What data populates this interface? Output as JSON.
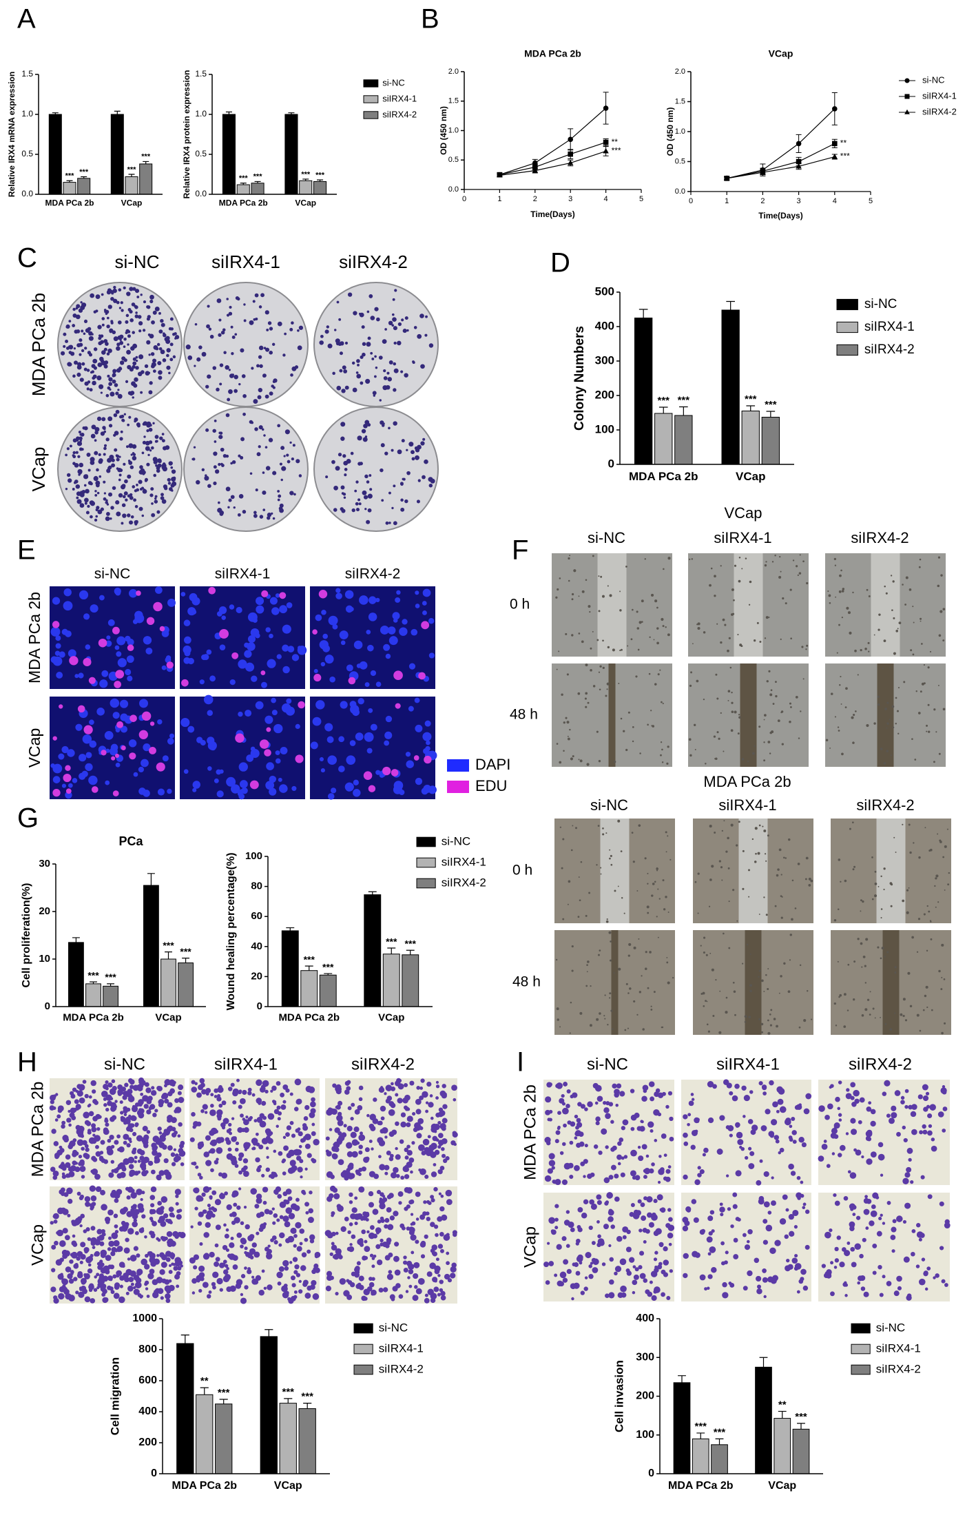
{
  "panel_labels": [
    "A",
    "B",
    "C",
    "D",
    "E",
    "F",
    "G",
    "H",
    "I"
  ],
  "chart_data": [
    {
      "type": "bar",
      "y_label": "Relative IRX4 mRNA expression",
      "categories": [
        "MDA PCa 2b",
        "VCap"
      ],
      "series": [
        {
          "color": "#000000",
          "values": [
            1.0,
            1.0
          ],
          "errors": [
            0.02,
            0.04
          ]
        },
        {
          "color": "#b3b3b3",
          "values": [
            0.15,
            0.22
          ],
          "errors": [
            0.02,
            0.03
          ],
          "significance": [
            "***",
            "***"
          ]
        },
        {
          "color": "#7f7f7f",
          "values": [
            0.2,
            0.38
          ],
          "errors": [
            0.02,
            0.03
          ],
          "significance": [
            "***",
            "***"
          ]
        }
      ],
      "ylim": [
        0,
        1.5
      ],
      "yticks": [
        {
          "value": 0,
          "label": "0.0"
        },
        0.5,
        {
          "value": 1,
          "label": "1.0"
        },
        1.5
      ]
    },
    {
      "type": "bar",
      "y_label": "Relative IRX4 protein expression",
      "categories": [
        "MDA PCa 2b",
        "VCap"
      ],
      "series": [
        {
          "name": "si-NC",
          "color": "#000000",
          "values": [
            1.0,
            1.0
          ],
          "errors": [
            0.03,
            0.02
          ]
        },
        {
          "name": "siIRX4-1",
          "color": "#b3b3b3",
          "values": [
            0.12,
            0.17
          ],
          "errors": [
            0.02,
            0.02
          ],
          "significance": [
            "***",
            "***"
          ]
        },
        {
          "name": "siIRX4-2",
          "color": "#7f7f7f",
          "values": [
            0.14,
            0.16
          ],
          "errors": [
            0.02,
            0.02
          ],
          "significance": [
            "***",
            "***"
          ]
        }
      ],
      "ylim": [
        0,
        1.5
      ],
      "yticks": [
        {
          "value": 0,
          "label": "0.0"
        },
        0.5,
        {
          "value": 1,
          "label": "1.0"
        },
        1.5
      ],
      "legend": true
    },
    {
      "type": "line",
      "title": "MDA PCa 2b",
      "x_label": "Time(Days)",
      "y_label": "OD (450 nm)",
      "x": [
        1,
        2,
        3,
        4
      ],
      "series": [
        {
          "color": "#000000",
          "marker": "circle",
          "values": [
            0.25,
            0.45,
            0.85,
            1.38
          ],
          "errors": [
            0.03,
            0.06,
            0.18,
            0.27
          ]
        },
        {
          "color": "#000000",
          "marker": "square",
          "values": [
            0.25,
            0.38,
            0.6,
            0.8
          ],
          "errors": [
            0.03,
            0.05,
            0.08,
            0.06
          ],
          "significance": [
            null,
            null,
            null,
            "**"
          ]
        },
        {
          "color": "#000000",
          "marker": "triangle",
          "values": [
            0.24,
            0.32,
            0.45,
            0.65
          ],
          "errors": [
            0.02,
            0.04,
            0.05,
            0.08
          ],
          "significance": [
            null,
            null,
            null,
            "***"
          ]
        }
      ],
      "xlim": [
        0,
        5
      ],
      "xticks": [
        0,
        1,
        2,
        3,
        4,
        5
      ],
      "ylim": [
        0,
        2
      ],
      "yticks": [
        {
          "value": 0,
          "label": "0.0"
        },
        0.5,
        {
          "value": 1,
          "label": "1.0"
        },
        1.5,
        {
          "value": 2,
          "label": "2.0"
        }
      ]
    },
    {
      "type": "line",
      "title": "VCap",
      "x_label": "Time(Days)",
      "y_label": "OD (450 nm)",
      "x": [
        1,
        2,
        3,
        4
      ],
      "series": [
        {
          "name": "si-NC",
          "color": "#000000",
          "marker": "circle",
          "values": [
            0.22,
            0.36,
            0.8,
            1.38
          ],
          "errors": [
            0.03,
            0.1,
            0.15,
            0.27
          ]
        },
        {
          "name": "siIRX4-1",
          "color": "#000000",
          "marker": "square",
          "values": [
            0.22,
            0.34,
            0.5,
            0.8
          ],
          "errors": [
            0.03,
            0.05,
            0.07,
            0.07
          ],
          "significance": [
            null,
            null,
            null,
            "**"
          ]
        },
        {
          "name": "siIRX4-2",
          "color": "#000000",
          "marker": "triangle",
          "values": [
            0.22,
            0.32,
            0.42,
            0.58
          ],
          "errors": [
            0.02,
            0.04,
            0.05,
            0.04
          ],
          "significance": [
            null,
            null,
            null,
            "***"
          ]
        }
      ],
      "xlim": [
        0,
        5
      ],
      "xticks": [
        0,
        1,
        2,
        3,
        4,
        5
      ],
      "ylim": [
        0,
        2
      ],
      "yticks": [
        {
          "value": 0,
          "label": "0.0"
        },
        0.5,
        {
          "value": 1,
          "label": "1.0"
        },
        1.5,
        {
          "value": 2,
          "label": "2.0"
        }
      ],
      "legend": true
    },
    {
      "type": "bar",
      "y_label": "Colony Numbers",
      "categories": [
        "MDA PCa 2b",
        "VCap"
      ],
      "series": [
        {
          "name": "si-NC",
          "color": "#000000",
          "values": [
            425,
            448
          ],
          "errors": [
            25,
            25
          ]
        },
        {
          "name": "siIRX4-1",
          "color": "#b3b3b3",
          "values": [
            148,
            155
          ],
          "errors": [
            18,
            15
          ],
          "significance": [
            "***",
            "***"
          ]
        },
        {
          "name": "siIRX4-2",
          "color": "#7f7f7f",
          "values": [
            142,
            137
          ],
          "errors": [
            25,
            17
          ],
          "significance": [
            "***",
            "***"
          ]
        }
      ],
      "ylim": [
        0,
        500
      ],
      "yticks": [
        0,
        100,
        200,
        300,
        400,
        500
      ],
      "legend": true
    },
    {
      "type": "bar",
      "title": "PCa",
      "y_label": "Cell proliferation(%)",
      "categories": [
        "MDA PCa 2b",
        "VCap"
      ],
      "series": [
        {
          "color": "#000000",
          "values": [
            13.5,
            25.5
          ],
          "errors": [
            1,
            2.5
          ]
        },
        {
          "color": "#b3b3b3",
          "values": [
            4.8,
            10
          ],
          "errors": [
            0.4,
            1.5
          ],
          "significance": [
            "***",
            "***"
          ]
        },
        {
          "color": "#7f7f7f",
          "values": [
            4.3,
            9.2
          ],
          "errors": [
            0.5,
            1
          ],
          "significance": [
            "***",
            "***"
          ]
        }
      ],
      "ylim": [
        0,
        30
      ],
      "yticks": [
        0,
        10,
        20,
        30
      ]
    },
    {
      "type": "bar",
      "y_label": "Wound healing percentage(%)",
      "categories": [
        "MDA PCa 2b",
        "VCap"
      ],
      "series": [
        {
          "name": "si-NC",
          "color": "#000000",
          "values": [
            50.5,
            74.5
          ],
          "errors": [
            2,
            2
          ]
        },
        {
          "name": "siIRX4-1",
          "color": "#b3b3b3",
          "values": [
            24,
            35
          ],
          "errors": [
            3,
            4
          ],
          "significance": [
            "***",
            "***"
          ]
        },
        {
          "name": "siIRX4-2",
          "color": "#7f7f7f",
          "values": [
            21,
            34.5
          ],
          "errors": [
            1,
            3
          ],
          "significance": [
            "***",
            "***"
          ]
        }
      ],
      "ylim": [
        0,
        100
      ],
      "yticks": [
        0,
        20,
        40,
        60,
        80,
        100
      ],
      "legend": true
    },
    {
      "type": "bar",
      "y_label": "Cell migration",
      "categories": [
        "MDA PCa 2b",
        "VCap"
      ],
      "series": [
        {
          "name": "si-NC",
          "color": "#000000",
          "values": [
            840,
            885
          ],
          "errors": [
            55,
            45
          ]
        },
        {
          "name": "siIRX4-1",
          "color": "#b3b3b3",
          "values": [
            510,
            455
          ],
          "errors": [
            45,
            30
          ],
          "significance": [
            "**",
            "***"
          ]
        },
        {
          "name": "siIRX4-2",
          "color": "#7f7f7f",
          "values": [
            450,
            420
          ],
          "errors": [
            30,
            35
          ],
          "significance": [
            "***",
            "***"
          ]
        }
      ],
      "ylim": [
        0,
        1000
      ],
      "yticks": [
        0,
        200,
        400,
        600,
        800,
        1000
      ],
      "legend": true
    },
    {
      "type": "bar",
      "y_label": "Cell invasion",
      "categories": [
        "MDA PCa 2b",
        "VCap"
      ],
      "series": [
        {
          "name": "si-NC",
          "color": "#000000",
          "values": [
            235,
            275
          ],
          "errors": [
            18,
            25
          ]
        },
        {
          "name": "siIRX4-1",
          "color": "#b3b3b3",
          "values": [
            90,
            143
          ],
          "errors": [
            15,
            18
          ],
          "significance": [
            "***",
            "**"
          ]
        },
        {
          "name": "siIRX4-2",
          "color": "#7f7f7f",
          "values": [
            75,
            115
          ],
          "errors": [
            15,
            15
          ],
          "significance": [
            "***",
            "***"
          ]
        }
      ],
      "ylim": [
        0,
        400
      ],
      "yticks": [
        0,
        100,
        200,
        300,
        400
      ],
      "legend": true
    }
  ],
  "images": {
    "C": {
      "columns": [
        "si-NC",
        "siIRX4-1",
        "siIRX4-2"
      ],
      "rows": [
        "MDA PCa 2b",
        "VCap"
      ]
    },
    "E": {
      "columns": [
        "si-NC",
        "siIRX4-1",
        "siIRX4-2"
      ],
      "rows": [
        "MDA PCa 2b",
        "VCap"
      ],
      "legend": [
        {
          "name": "DAPI",
          "color": "#1f2bff"
        },
        {
          "name": "EDU",
          "color": "#e020e0"
        }
      ]
    },
    "F": [
      {
        "title": "VCap",
        "columns": [
          "si-NC",
          "siIRX4-1",
          "siIRX4-2"
        ],
        "rows": [
          "0 h",
          "48 h"
        ]
      },
      {
        "title": "MDA PCa 2b",
        "columns": [
          "si-NC",
          "siIRX4-1",
          "siIRX4-2"
        ],
        "rows": [
          "0 h",
          "48 h"
        ]
      }
    ],
    "H": {
      "columns": [
        "si-NC",
        "siIRX4-1",
        "siIRX4-2"
      ],
      "rows": [
        "MDA PCa 2b",
        "VCap"
      ]
    },
    "I": {
      "columns": [
        "si-NC",
        "siIRX4-1",
        "siIRX4-2"
      ],
      "rows": [
        "MDA PCa 2b",
        "VCap"
      ]
    }
  }
}
